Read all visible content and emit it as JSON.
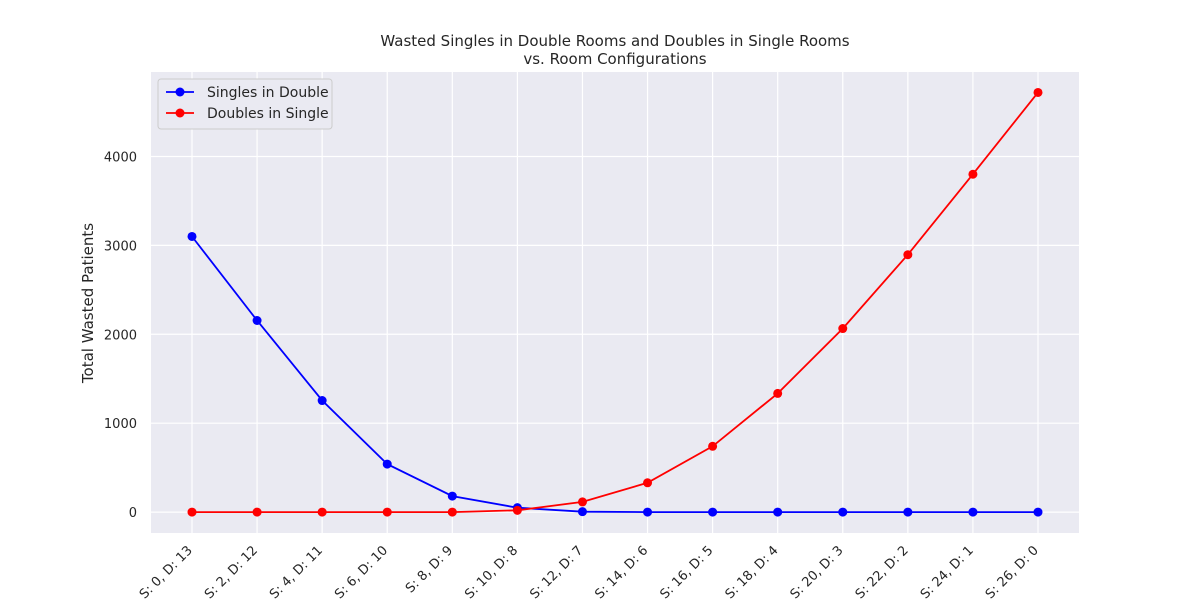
{
  "chart_data": {
    "type": "line",
    "title_line1": "Wasted Singles in Double Rooms and Doubles in Single Rooms",
    "title_line2": "vs. Room Configurations",
    "xlabel": "",
    "ylabel": "Total Wasted Patients",
    "categories": [
      "S: 0, D: 13",
      "S: 2, D: 12",
      "S: 4, D: 11",
      "S: 6, D: 10",
      "S: 8, D: 9",
      "S: 10, D: 8",
      "S: 12, D: 7",
      "S: 14, D: 6",
      "S: 16, D: 5",
      "S: 18, D: 4",
      "S: 20, D: 3",
      "S: 22, D: 2",
      "S: 24, D: 1",
      "S: 26, D: 0"
    ],
    "yticks": [
      0,
      1000,
      2000,
      3000,
      4000
    ],
    "ylim": [
      -235,
      4950
    ],
    "grid": true,
    "legend_position": "top-left",
    "series": [
      {
        "name": "Singles in Double",
        "color": "#0000ff",
        "values": [
          3100,
          2155,
          1255,
          540,
          180,
          50,
          5,
          0,
          0,
          0,
          0,
          0,
          0,
          0
        ]
      },
      {
        "name": "Doubles in Single",
        "color": "#ff0000",
        "values": [
          0,
          0,
          0,
          0,
          0,
          20,
          115,
          330,
          740,
          1335,
          2065,
          2895,
          3800,
          4720
        ]
      }
    ]
  }
}
